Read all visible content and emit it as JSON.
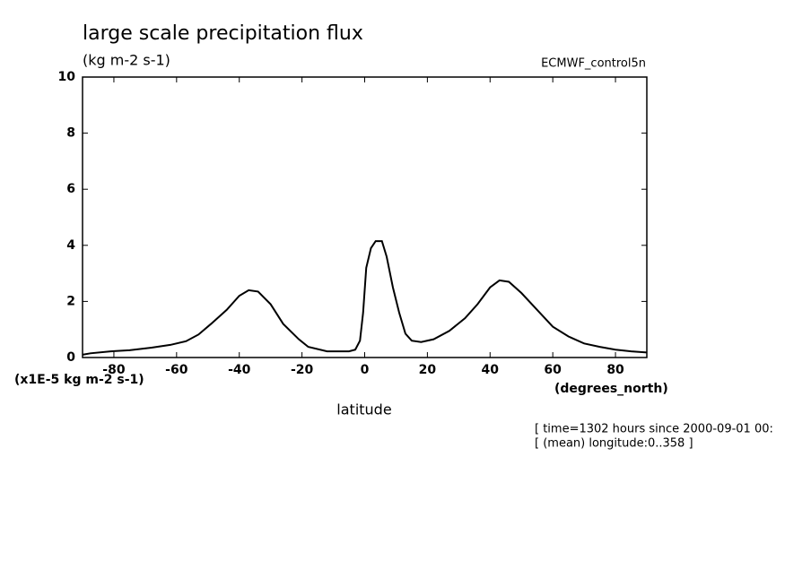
{
  "chart_data": {
    "type": "line",
    "title": "large scale precipitation flux",
    "subtitle": "(kg m-2 s-1)",
    "dataset": "ECMWF_control5n",
    "y_scale_label": "(x1E-5 kg m-2 s-1)",
    "x_units": "(degrees_north)",
    "x_label": "latitude",
    "notes": [
      "[ time=1302 hours since 2000-09-01 00:",
      "[ (mean) longitude:0..358 ]"
    ],
    "x": [
      -90,
      -87.5,
      -81,
      -75,
      -68,
      -62,
      -57,
      -53,
      -49,
      -44,
      -40,
      -37,
      -34,
      -30,
      -26,
      -21,
      -18,
      -12,
      -5,
      -3,
      -1.5,
      -0.5,
      0.5,
      2,
      3.5,
      5.5,
      7,
      9,
      11,
      13,
      15,
      18,
      22,
      27,
      32,
      36,
      40,
      43,
      46,
      50,
      55,
      60,
      65,
      70,
      75,
      80,
      85,
      90
    ],
    "series": [
      {
        "color": "#000000",
        "values": [
          0.1,
          0.15,
          0.22,
          0.26,
          0.35,
          0.45,
          0.58,
          0.82,
          1.2,
          1.7,
          2.2,
          2.4,
          2.35,
          1.9,
          1.2,
          0.65,
          0.38,
          0.22,
          0.22,
          0.28,
          0.6,
          1.6,
          3.2,
          3.9,
          4.15,
          4.15,
          3.6,
          2.5,
          1.6,
          0.85,
          0.6,
          0.55,
          0.65,
          0.95,
          1.4,
          1.9,
          2.5,
          2.75,
          2.7,
          2.3,
          1.7,
          1.1,
          0.75,
          0.5,
          0.38,
          0.28,
          0.22,
          0.18
        ]
      }
    ],
    "xlim": [
      -90,
      90
    ],
    "xticks": [
      -80,
      -60,
      -40,
      -20,
      0,
      20,
      40,
      60,
      80
    ],
    "ylim": [
      0,
      10
    ],
    "yticks": [
      0,
      2,
      4,
      6,
      8,
      10
    ]
  }
}
